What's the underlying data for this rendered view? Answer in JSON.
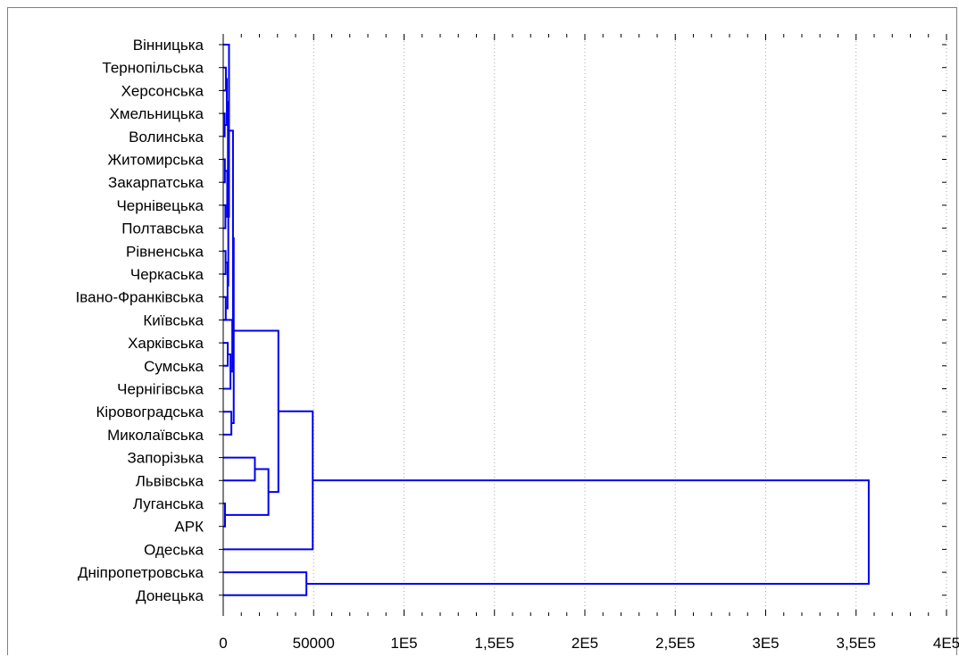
{
  "chart_data": {
    "type": "dendrogram",
    "orientation": "horizontal",
    "title": "",
    "xlabel": "",
    "ylabel": "",
    "xlim": [
      0,
      400000
    ],
    "x_tick_values": [
      0,
      50000,
      100000,
      150000,
      200000,
      250000,
      300000,
      350000,
      400000
    ],
    "x_tick_labels": [
      "0",
      "50000",
      "1E5",
      "1,5E5",
      "2E5",
      "2,5E5",
      "3E5",
      "3,5E5",
      "4E5"
    ],
    "grid": "vertical-dotted",
    "leaves": [
      "Вінницька",
      "Тернопільська",
      "Херсонська",
      "Хмельницька",
      "Волинська",
      "Житомирська",
      "Закарпатська",
      "Чернівецька",
      "Полтавська",
      "Рівненська",
      "Черкаська",
      "Івано-Франківська",
      "Київська",
      "Харківська",
      "Сумська",
      "Чернігівська",
      "Кіровоградська",
      "Миколаївська",
      "Запорізька",
      "Львівська",
      "Луганська",
      "АРК",
      "Одеська",
      "Дніпропетровська",
      "Донецька"
    ],
    "merges": [
      {
        "left": "L1",
        "right": "L2",
        "height": 1500
      },
      {
        "left": "L3",
        "right": "L4",
        "height": 800
      },
      {
        "left": "L5",
        "right": "L6",
        "height": 900
      },
      {
        "left": "L7",
        "right": "L8",
        "height": 1200
      },
      {
        "left": "L9",
        "right": "L10",
        "height": 1300
      },
      {
        "left": "L11",
        "right": "L12",
        "height": 1400
      },
      {
        "left": "L20",
        "right": "L21",
        "height": 1000
      },
      {
        "left": "C1",
        "right": "C2",
        "height": 2000
      },
      {
        "left": "C3",
        "right": "C4",
        "height": 2200
      },
      {
        "left": "C5",
        "right": "C6",
        "height": 2400
      },
      {
        "left": "C8",
        "right": "C9",
        "height": 2600
      },
      {
        "left": "C11",
        "right": "C10",
        "height": 2800
      },
      {
        "left": "L0",
        "right": "C12",
        "height": 3200
      },
      {
        "left": "L13",
        "right": "L14",
        "height": 2500
      },
      {
        "left": "C14",
        "right": "L15",
        "height": 4000
      },
      {
        "left": "L12",
        "right": "C15",
        "height": 5000
      },
      {
        "left": "C13",
        "right": "C16",
        "height": 5400
      },
      {
        "left": "L16",
        "right": "L17",
        "height": 4500
      },
      {
        "left": "C17",
        "right": "C18",
        "height": 5800
      },
      {
        "left": "L18",
        "right": "L19",
        "height": 17500
      },
      {
        "left": "C20",
        "right": "C7",
        "height": 25000
      },
      {
        "left": "C19",
        "right": "C21",
        "height": 30500
      },
      {
        "left": "C22",
        "right": "L22",
        "height": 49500
      },
      {
        "left": "L23",
        "right": "L24",
        "height": 46000
      },
      {
        "left": "C23",
        "right": "C24",
        "height": 357000
      }
    ],
    "colors": {
      "links": "#0000ee",
      "axis": "#000000",
      "grid": "#aaaaaa"
    }
  }
}
